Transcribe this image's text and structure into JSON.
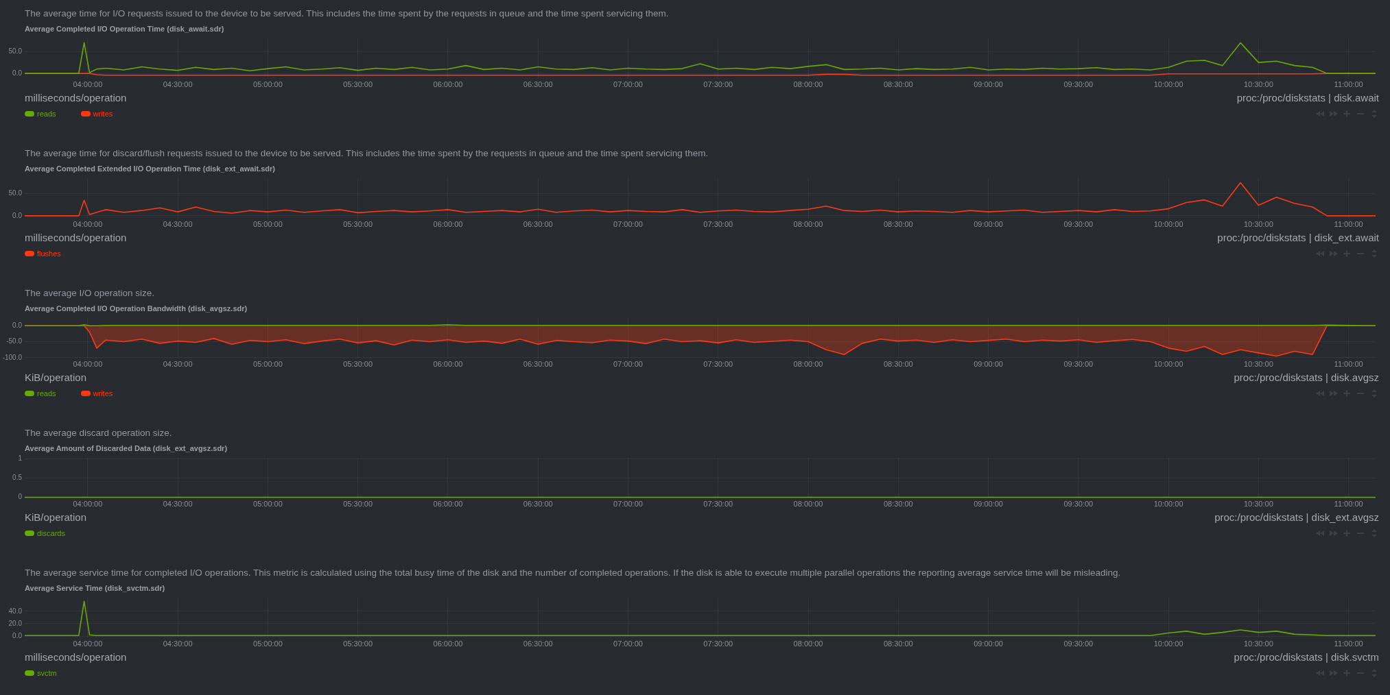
{
  "chart_data": [
    {
      "type": "line",
      "subtitle": "The average time for I/O requests issued to the device to be served. This includes the time spent by the requests in queue and the time spent servicing them.",
      "title": "Average Completed I/O Operation Time (disk_await.sdr)",
      "annotations": [
        "milliseconds/operation",
        "proc:/proc/diskstats | disk.await"
      ],
      "x": [
        3.65,
        3.95,
        3.98,
        4.01,
        4.05,
        4.1,
        4.2,
        4.3,
        4.4,
        4.5,
        4.6,
        4.7,
        4.8,
        4.9,
        5.0,
        5.1,
        5.2,
        5.3,
        5.4,
        5.5,
        5.6,
        5.7,
        5.8,
        5.9,
        6.0,
        6.1,
        6.2,
        6.3,
        6.4,
        6.5,
        6.6,
        6.7,
        6.8,
        6.9,
        7.0,
        7.1,
        7.2,
        7.3,
        7.4,
        7.5,
        7.6,
        7.7,
        7.8,
        7.9,
        8.0,
        8.1,
        8.2,
        8.3,
        8.4,
        8.5,
        8.6,
        8.7,
        8.8,
        8.9,
        9.0,
        9.1,
        9.2,
        9.3,
        9.4,
        9.5,
        9.6,
        9.7,
        9.8,
        9.9,
        10.0,
        10.1,
        10.2,
        10.3,
        10.4,
        10.5,
        10.6,
        10.7,
        10.8,
        10.88,
        11.15
      ],
      "series": [
        {
          "name": "reads",
          "color": "#66aa00",
          "values": [
            0,
            0,
            70,
            2,
            10,
            12,
            8,
            15,
            10,
            7,
            14,
            9,
            12,
            6,
            11,
            15,
            8,
            10,
            13,
            7,
            12,
            9,
            14,
            8,
            10,
            18,
            9,
            12,
            8,
            15,
            10,
            9,
            13,
            8,
            12,
            10,
            9,
            11,
            22,
            10,
            12,
            9,
            14,
            11,
            16,
            20,
            9,
            10,
            12,
            8,
            11,
            9,
            10,
            14,
            8,
            10,
            9,
            12,
            10,
            11,
            13,
            9,
            10,
            8,
            14,
            28,
            30,
            18,
            70,
            25,
            28,
            18,
            14,
            0,
            0
          ]
        },
        {
          "name": "writes",
          "color": "#fe3912",
          "values": [
            0,
            0,
            0,
            0,
            -3,
            -4,
            -4,
            -4,
            -4,
            -4,
            -4,
            -4,
            -4,
            -4,
            -4,
            -4,
            -4,
            -4,
            -4,
            -4,
            -4,
            -4,
            -4,
            -4,
            -4,
            -4,
            -4,
            -4,
            -4,
            -4,
            -4,
            -4,
            -4,
            -4,
            -4,
            -4,
            -4,
            -4,
            -4,
            -4,
            -4,
            -4,
            -4,
            -4,
            -4,
            -2,
            -2,
            -4,
            -4,
            -4,
            -4,
            -4,
            -4,
            -4,
            -4,
            -4,
            -4,
            -4,
            -4,
            -4,
            -4,
            -4,
            -4,
            -4,
            -1,
            -1,
            -1,
            -1,
            -1,
            -1,
            -1,
            -1,
            -1,
            0,
            0
          ]
        }
      ],
      "xlim": [
        3.65,
        11.15
      ],
      "ylim": [
        -12,
        80
      ],
      "xticks": [
        {
          "value": 4,
          "label": "04:00:00"
        },
        {
          "value": 4.5,
          "label": "04:30:00"
        },
        {
          "value": 5,
          "label": "05:00:00"
        },
        {
          "value": 5.5,
          "label": "05:30:00"
        },
        {
          "value": 6,
          "label": "06:00:00"
        },
        {
          "value": 6.5,
          "label": "06:30:00"
        },
        {
          "value": 7,
          "label": "07:00:00"
        },
        {
          "value": 7.5,
          "label": "07:30:00"
        },
        {
          "value": 8,
          "label": "08:00:00"
        },
        {
          "value": 8.5,
          "label": "08:30:00"
        },
        {
          "value": 9,
          "label": "09:00:00"
        },
        {
          "value": 9.5,
          "label": "09:30:00"
        },
        {
          "value": 10,
          "label": "10:00:00"
        },
        {
          "value": 10.5,
          "label": "10:30:00"
        },
        {
          "value": 11,
          "label": "11:00:00"
        }
      ],
      "yticks": [
        {
          "value": 0,
          "label": "0.0"
        },
        {
          "value": 50,
          "label": "50.0"
        }
      ],
      "grid": true,
      "legend": "bottom left",
      "marker": "none"
    },
    {
      "type": "line",
      "subtitle": "The average time for discard/flush requests issued to the device to be served. This includes the time spent by the requests in queue and the time spent servicing them.",
      "title": "Average Completed Extended I/O Operation Time (disk_ext_await.sdr)",
      "annotations": [
        "milliseconds/operation",
        "proc:/proc/diskstats | disk_ext.await"
      ],
      "x": [
        3.65,
        3.95,
        3.98,
        4.01,
        4.05,
        4.1,
        4.2,
        4.3,
        4.4,
        4.5,
        4.6,
        4.7,
        4.8,
        4.9,
        5.0,
        5.1,
        5.2,
        5.3,
        5.4,
        5.5,
        5.6,
        5.7,
        5.8,
        5.9,
        6.0,
        6.1,
        6.2,
        6.3,
        6.4,
        6.5,
        6.6,
        6.7,
        6.8,
        6.9,
        7.0,
        7.1,
        7.2,
        7.3,
        7.4,
        7.5,
        7.6,
        7.7,
        7.8,
        7.9,
        8.0,
        8.1,
        8.2,
        8.3,
        8.4,
        8.5,
        8.6,
        8.7,
        8.8,
        8.9,
        9.0,
        9.1,
        9.2,
        9.3,
        9.4,
        9.5,
        9.6,
        9.7,
        9.8,
        9.9,
        10.0,
        10.1,
        10.2,
        10.3,
        10.4,
        10.5,
        10.6,
        10.7,
        10.8,
        10.88,
        11.15
      ],
      "series": [
        {
          "name": "flushes",
          "color": "#fe3912",
          "values": [
            0,
            0,
            35,
            3,
            8,
            14,
            8,
            12,
            18,
            9,
            20,
            10,
            6,
            12,
            9,
            13,
            8,
            11,
            14,
            7,
            10,
            12,
            9,
            11,
            14,
            8,
            10,
            12,
            9,
            15,
            8,
            11,
            13,
            9,
            12,
            10,
            9,
            14,
            8,
            11,
            13,
            10,
            9,
            12,
            15,
            22,
            12,
            10,
            13,
            9,
            11,
            10,
            8,
            12,
            9,
            11,
            13,
            8,
            10,
            12,
            9,
            14,
            10,
            11,
            16,
            30,
            36,
            22,
            75,
            24,
            42,
            28,
            20,
            0,
            0
          ]
        }
      ],
      "xlim": [
        3.65,
        11.15
      ],
      "ylim": [
        -6,
        85
      ],
      "xticks": [
        {
          "value": 4,
          "label": "04:00:00"
        },
        {
          "value": 4.5,
          "label": "04:30:00"
        },
        {
          "value": 5,
          "label": "05:00:00"
        },
        {
          "value": 5.5,
          "label": "05:30:00"
        },
        {
          "value": 6,
          "label": "06:00:00"
        },
        {
          "value": 6.5,
          "label": "06:30:00"
        },
        {
          "value": 7,
          "label": "07:00:00"
        },
        {
          "value": 7.5,
          "label": "07:30:00"
        },
        {
          "value": 8,
          "label": "08:00:00"
        },
        {
          "value": 8.5,
          "label": "08:30:00"
        },
        {
          "value": 9,
          "label": "09:00:00"
        },
        {
          "value": 9.5,
          "label": "09:30:00"
        },
        {
          "value": 10,
          "label": "10:00:00"
        },
        {
          "value": 10.5,
          "label": "10:30:00"
        },
        {
          "value": 11,
          "label": "11:00:00"
        }
      ],
      "yticks": [
        {
          "value": 0,
          "label": "0.0"
        },
        {
          "value": 50,
          "label": "50.0"
        }
      ],
      "grid": true,
      "legend": "bottom left",
      "marker": "none"
    },
    {
      "type": "area",
      "subtitle": "The average I/O operation size.",
      "title": "Average Completed I/O Operation Bandwidth (disk_avgsz.sdr)",
      "annotations": [
        "KiB/operation",
        "proc:/proc/diskstats | disk.avgsz"
      ],
      "x": [
        3.65,
        3.95,
        3.98,
        4.01,
        4.05,
        4.1,
        4.2,
        4.3,
        4.4,
        4.5,
        4.6,
        4.7,
        4.8,
        4.9,
        5.0,
        5.1,
        5.2,
        5.3,
        5.4,
        5.5,
        5.6,
        5.7,
        5.8,
        5.9,
        6.0,
        6.1,
        6.2,
        6.3,
        6.4,
        6.5,
        6.6,
        6.7,
        6.8,
        6.9,
        7.0,
        7.1,
        7.2,
        7.3,
        7.4,
        7.5,
        7.6,
        7.7,
        7.8,
        7.9,
        8.0,
        8.1,
        8.2,
        8.3,
        8.4,
        8.5,
        8.6,
        8.7,
        8.8,
        8.9,
        9.0,
        9.1,
        9.2,
        9.3,
        9.4,
        9.5,
        9.6,
        9.7,
        9.8,
        9.9,
        10.0,
        10.1,
        10.2,
        10.3,
        10.4,
        10.5,
        10.6,
        10.7,
        10.8,
        10.88,
        11.15
      ],
      "series": [
        {
          "name": "reads",
          "color": "#66aa00",
          "values": [
            0,
            0,
            3,
            0,
            0,
            1,
            1,
            1,
            1,
            1,
            1,
            1,
            1,
            1,
            1,
            1,
            1,
            1,
            1,
            1,
            1,
            1,
            1,
            1,
            3,
            1,
            1,
            1,
            1,
            1,
            1,
            1,
            1,
            1,
            1,
            1,
            1,
            1,
            1,
            1,
            1,
            1,
            1,
            1,
            1,
            1,
            1,
            1,
            1,
            1,
            1,
            1,
            1,
            1,
            1,
            1,
            1,
            1,
            1,
            1,
            1,
            1,
            1,
            1,
            1,
            1,
            1,
            1,
            1,
            1,
            1,
            1,
            1,
            2,
            0
          ]
        },
        {
          "name": "writes",
          "color": "#fe3912",
          "values": [
            0,
            0,
            0,
            -20,
            -70,
            -45,
            -50,
            -42,
            -55,
            -48,
            -52,
            -40,
            -58,
            -46,
            -50,
            -44,
            -56,
            -48,
            -42,
            -54,
            -47,
            -60,
            -45,
            -50,
            -44,
            -52,
            -48,
            -55,
            -42,
            -58,
            -46,
            -50,
            -53,
            -45,
            -48,
            -56,
            -42,
            -50,
            -47,
            -54,
            -44,
            -52,
            -49,
            -45,
            -50,
            -75,
            -90,
            -55,
            -42,
            -48,
            -45,
            -52,
            -44,
            -50,
            -46,
            -42,
            -50,
            -45,
            -48,
            -44,
            -52,
            -47,
            -43,
            -50,
            -70,
            -80,
            -65,
            -90,
            -75,
            -85,
            -95,
            -80,
            -90,
            0,
            0
          ]
        }
      ],
      "xlim": [
        3.65,
        11.15
      ],
      "ylim": [
        -102,
        24
      ],
      "xticks": [
        {
          "value": 4,
          "label": "04:00:00"
        },
        {
          "value": 4.5,
          "label": "04:30:00"
        },
        {
          "value": 5,
          "label": "05:00:00"
        },
        {
          "value": 5.5,
          "label": "05:30:00"
        },
        {
          "value": 6,
          "label": "06:00:00"
        },
        {
          "value": 6.5,
          "label": "06:30:00"
        },
        {
          "value": 7,
          "label": "07:00:00"
        },
        {
          "value": 7.5,
          "label": "07:30:00"
        },
        {
          "value": 8,
          "label": "08:00:00"
        },
        {
          "value": 8.5,
          "label": "08:30:00"
        },
        {
          "value": 9,
          "label": "09:00:00"
        },
        {
          "value": 9.5,
          "label": "09:30:00"
        },
        {
          "value": 10,
          "label": "10:00:00"
        },
        {
          "value": 10.5,
          "label": "10:30:00"
        },
        {
          "value": 11,
          "label": "11:00:00"
        }
      ],
      "yticks": [
        {
          "value": 0,
          "label": "0.0"
        },
        {
          "value": -50,
          "label": "-50.0"
        },
        {
          "value": -100,
          "label": "-100.0"
        }
      ],
      "grid": true,
      "legend": "bottom left",
      "marker": "none"
    },
    {
      "type": "line",
      "subtitle": "The average discard operation size.",
      "title": "Average Amount of Discarded Data (disk_ext_avgsz.sdr)",
      "annotations": [
        "KiB/operation",
        "proc:/proc/diskstats | disk_ext.avgsz"
      ],
      "x": [
        3.65,
        11.15
      ],
      "series": [
        {
          "name": "discards",
          "color": "#66aa00",
          "values": [
            0,
            0
          ]
        }
      ],
      "xlim": [
        3.65,
        11.15
      ],
      "ylim": [
        -0.02,
        1.02
      ],
      "xticks": [
        {
          "value": 4,
          "label": "04:00:00"
        },
        {
          "value": 4.5,
          "label": "04:30:00"
        },
        {
          "value": 5,
          "label": "05:00:00"
        },
        {
          "value": 5.5,
          "label": "05:30:00"
        },
        {
          "value": 6,
          "label": "06:00:00"
        },
        {
          "value": 6.5,
          "label": "06:30:00"
        },
        {
          "value": 7,
          "label": "07:00:00"
        },
        {
          "value": 7.5,
          "label": "07:30:00"
        },
        {
          "value": 8,
          "label": "08:00:00"
        },
        {
          "value": 8.5,
          "label": "08:30:00"
        },
        {
          "value": 9,
          "label": "09:00:00"
        },
        {
          "value": 9.5,
          "label": "09:30:00"
        },
        {
          "value": 10,
          "label": "10:00:00"
        },
        {
          "value": 10.5,
          "label": "10:30:00"
        },
        {
          "value": 11,
          "label": "11:00:00"
        }
      ],
      "yticks": [
        0,
        0.5,
        1
      ],
      "grid": true,
      "legend": "bottom left",
      "marker": "none"
    },
    {
      "type": "line",
      "subtitle": "The average service time for completed I/O operations. This metric is calculated using the total busy time of the disk and the number of completed operations. If the disk is able to execute multiple parallel operations the reporting average service time will be misleading.",
      "title": "Average Service Time (disk_svctm.sdr)",
      "annotations": [
        "milliseconds/operation",
        "proc:/proc/diskstats | disk.svctm"
      ],
      "x": [
        3.65,
        3.95,
        3.98,
        4.01,
        4.05,
        4.1,
        4.2,
        4.3,
        4.4,
        4.5,
        4.6,
        4.7,
        4.8,
        4.9,
        5.0,
        5.1,
        5.2,
        5.3,
        5.4,
        5.5,
        5.6,
        5.7,
        5.8,
        5.9,
        6.0,
        6.1,
        6.2,
        6.3,
        6.4,
        6.5,
        6.6,
        6.7,
        6.8,
        6.9,
        7.0,
        7.1,
        7.2,
        7.3,
        7.4,
        7.5,
        7.6,
        7.7,
        7.8,
        7.9,
        8.0,
        8.1,
        8.2,
        8.3,
        8.4,
        8.5,
        8.6,
        8.7,
        8.8,
        8.9,
        9.0,
        9.1,
        9.2,
        9.3,
        9.4,
        9.5,
        9.6,
        9.7,
        9.8,
        9.9,
        10.0,
        10.1,
        10.2,
        10.3,
        10.4,
        10.5,
        10.6,
        10.7,
        10.8,
        10.88,
        11.15
      ],
      "series": [
        {
          "name": "svctm",
          "color": "#66aa00",
          "values": [
            1,
            1,
            56,
            2,
            1,
            1,
            1,
            1,
            1,
            1,
            1,
            1,
            1,
            1,
            1,
            1,
            1,
            1,
            1,
            1,
            1,
            1,
            1,
            1,
            1,
            1,
            1,
            1,
            1,
            1,
            1,
            1,
            1,
            1,
            1,
            1,
            1,
            1,
            1,
            1,
            1,
            1,
            1,
            1,
            1,
            1,
            1,
            1,
            1,
            1,
            1,
            1,
            1,
            1,
            1,
            1,
            1,
            1,
            1,
            1,
            1,
            1,
            1,
            1,
            5,
            8,
            3,
            6,
            10,
            6,
            8,
            3,
            2,
            1,
            1
          ]
        }
      ],
      "xlim": [
        3.65,
        11.15
      ],
      "ylim": [
        -3,
        62
      ],
      "xticks": [
        {
          "value": 4,
          "label": "04:00:00"
        },
        {
          "value": 4.5,
          "label": "04:30:00"
        },
        {
          "value": 5,
          "label": "05:00:00"
        },
        {
          "value": 5.5,
          "label": "05:30:00"
        },
        {
          "value": 6,
          "label": "06:00:00"
        },
        {
          "value": 6.5,
          "label": "06:30:00"
        },
        {
          "value": 7,
          "label": "07:00:00"
        },
        {
          "value": 7.5,
          "label": "07:30:00"
        },
        {
          "value": 8,
          "label": "08:00:00"
        },
        {
          "value": 8.5,
          "label": "08:30:00"
        },
        {
          "value": 9,
          "label": "09:00:00"
        },
        {
          "value": 9.5,
          "label": "09:30:00"
        },
        {
          "value": 10,
          "label": "10:00:00"
        },
        {
          "value": 10.5,
          "label": "10:30:00"
        },
        {
          "value": 11,
          "label": "11:00:00"
        }
      ],
      "yticks": [
        {
          "value": 0,
          "label": "0.0"
        },
        {
          "value": 20,
          "label": "20.0"
        },
        {
          "value": 40,
          "label": "40.0"
        }
      ],
      "grid": true,
      "legend": "bottom left",
      "marker": "none"
    }
  ]
}
